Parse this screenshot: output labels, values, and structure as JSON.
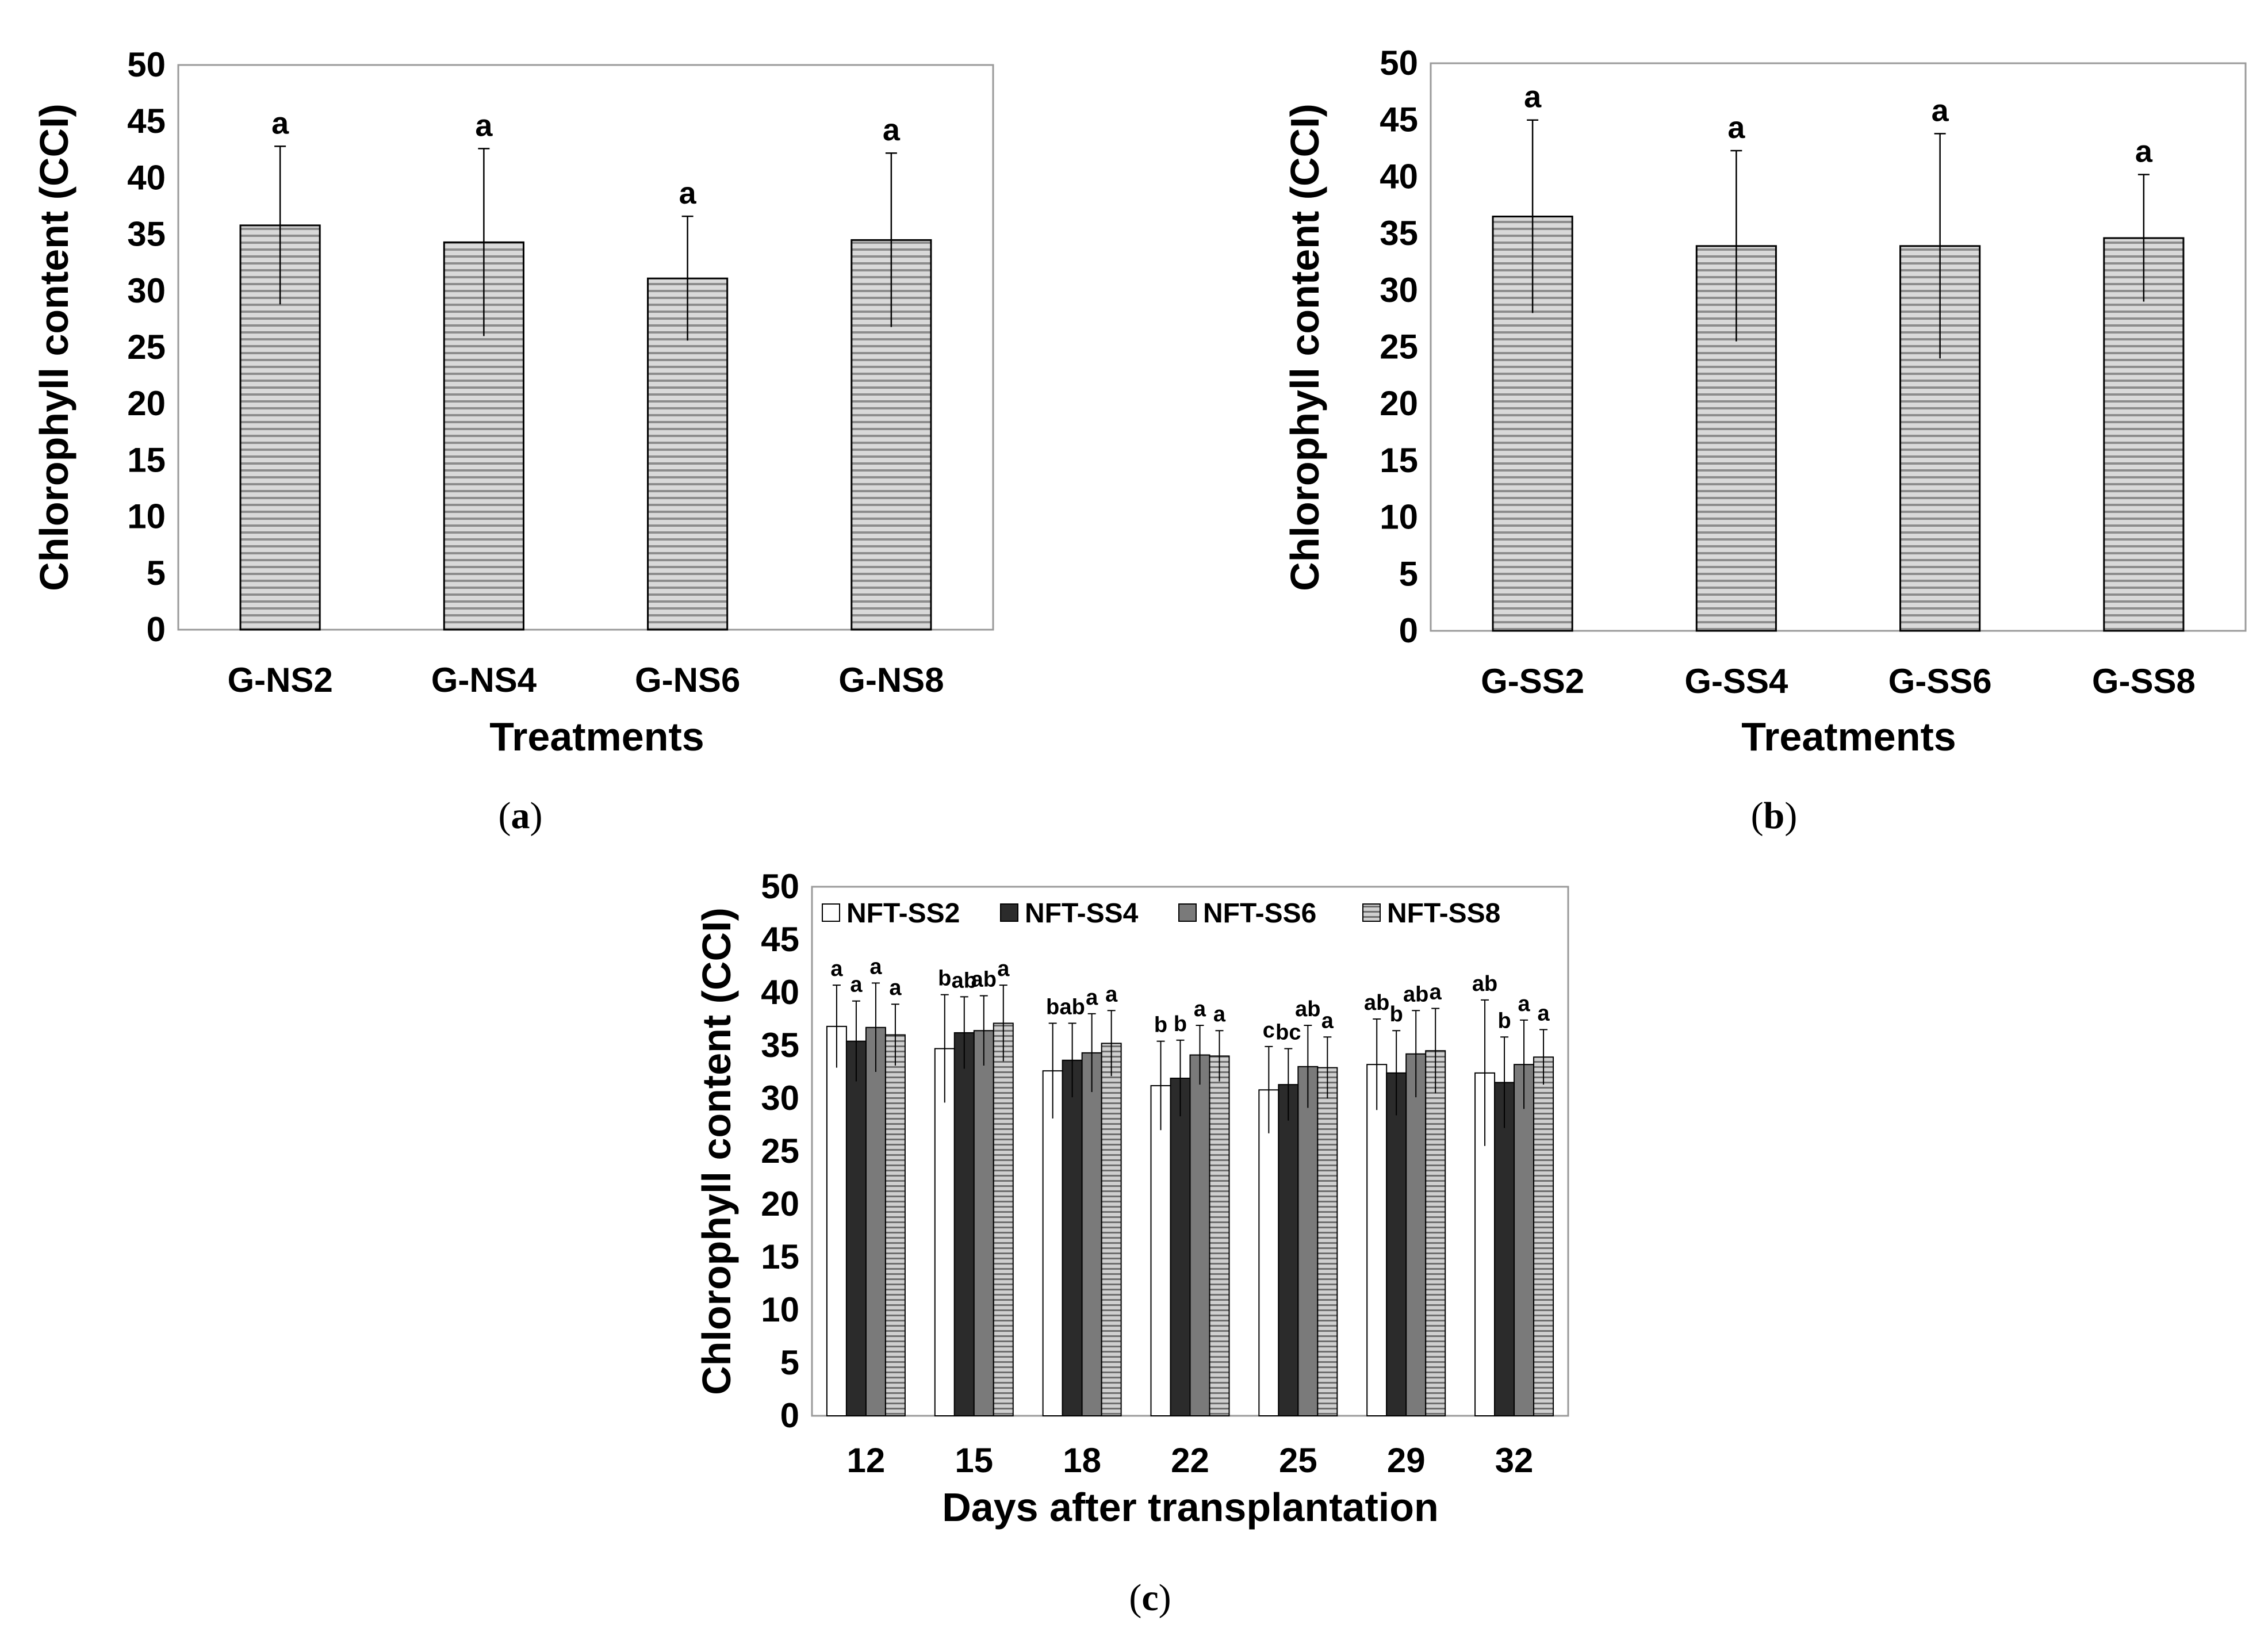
{
  "colors": {
    "white": "#ffffff",
    "dark": "#2b2b2b",
    "mid": "#7a7a7a",
    "stripe_light": "#d9d9d9",
    "stripe_dark": "#8c8c8c"
  },
  "chart_data": [
    {
      "type": "bar",
      "panel": "a",
      "caption_letter": "a",
      "categories": [
        "G-NS2",
        "G-NS4",
        "G-NS6",
        "G-NS8"
      ],
      "values": [
        35.8,
        34.3,
        31.1,
        34.5
      ],
      "errors": [
        7.0,
        8.3,
        5.5,
        7.7
      ],
      "letters": [
        "a",
        "a",
        "a",
        "a"
      ],
      "xlabel": "Treatments",
      "ylabel": "Chlorophyll content (CCI)",
      "ylim": [
        0,
        50
      ],
      "yticks": [
        "0",
        "5",
        "10",
        "15",
        "20",
        "25",
        "30",
        "35",
        "40",
        "45",
        "50"
      ]
    },
    {
      "type": "bar",
      "panel": "b",
      "caption_letter": "b",
      "categories": [
        "G-SS2",
        "G-SS4",
        "G-SS6",
        "G-SS8"
      ],
      "values": [
        36.5,
        33.9,
        33.9,
        34.6
      ],
      "errors": [
        8.5,
        8.4,
        9.9,
        5.6
      ],
      "letters": [
        "a",
        "a",
        "a",
        "a"
      ],
      "xlabel": "Treatments",
      "ylabel": "Chlorophyll content (CCI)",
      "ylim": [
        0,
        50
      ],
      "yticks": [
        "0",
        "5",
        "10",
        "15",
        "20",
        "25",
        "30",
        "35",
        "40",
        "45",
        "50"
      ]
    },
    {
      "type": "bar",
      "panel": "c",
      "caption_letter": "c",
      "categories": [
        "12",
        "15",
        "18",
        "22",
        "25",
        "29",
        "32"
      ],
      "series": [
        {
          "name": "NFT-SS2",
          "values": [
            36.8,
            34.7,
            32.6,
            31.2,
            30.8,
            33.2,
            32.4
          ],
          "errors": [
            3.9,
            5.1,
            4.5,
            4.2,
            4.1,
            4.3,
            6.9
          ],
          "letters": [
            "a",
            "b",
            "b",
            "b",
            "c",
            "ab",
            "ab"
          ]
        },
        {
          "name": "NFT-SS4",
          "values": [
            35.4,
            36.2,
            33.6,
            31.9,
            31.3,
            32.4,
            31.5
          ],
          "errors": [
            3.8,
            3.4,
            3.5,
            3.6,
            3.4,
            4.0,
            4.3
          ],
          "letters": [
            "a",
            "ab",
            "ab",
            "b",
            "bc",
            "b",
            "b"
          ]
        },
        {
          "name": "NFT-SS6",
          "values": [
            36.7,
            36.4,
            34.3,
            34.1,
            33.0,
            34.2,
            33.2
          ],
          "errors": [
            4.2,
            3.3,
            3.7,
            2.8,
            3.9,
            4.1,
            4.2
          ],
          "letters": [
            "a",
            "ab",
            "a",
            "a",
            "ab",
            "ab",
            "a"
          ]
        },
        {
          "name": "NFT-SS8",
          "values": [
            36.0,
            37.1,
            35.2,
            34.0,
            32.9,
            34.5,
            33.9
          ],
          "errors": [
            2.9,
            3.6,
            3.1,
            2.4,
            2.9,
            4.0,
            2.6
          ],
          "letters": [
            "a",
            "a",
            "a",
            "a",
            "a",
            "a",
            "a"
          ]
        }
      ],
      "xlabel": "Days after transplantation",
      "ylabel": "Chlorophyll content (CCI)",
      "ylim": [
        0,
        50
      ],
      "yticks": [
        "0",
        "5",
        "10",
        "15",
        "20",
        "25",
        "30",
        "35",
        "40",
        "45",
        "50"
      ],
      "legend_position": "top"
    }
  ]
}
